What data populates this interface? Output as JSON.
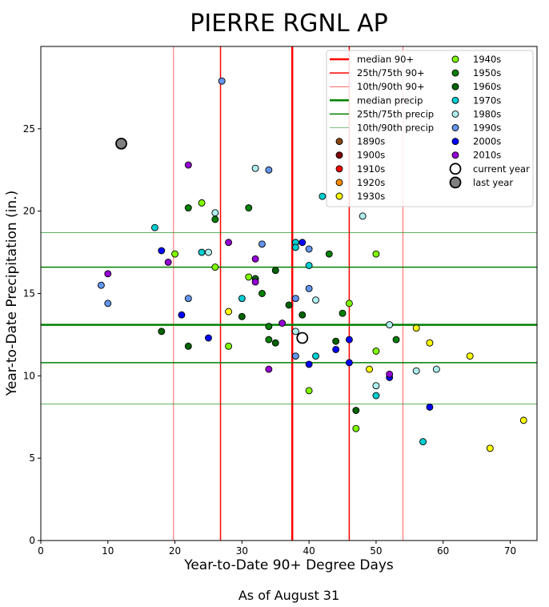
{
  "chart_data": {
    "type": "scatter",
    "title": "PIERRE RGNL AP",
    "xlabel": "Year-to-Date 90+ Degree Days",
    "ylabel": "Year-to-Date Precipitation (in.)",
    "footer": "As of August 31",
    "xlim": [
      0,
      74
    ],
    "ylim": [
      0,
      30
    ],
    "xticks": [
      0,
      10,
      20,
      30,
      40,
      50,
      60,
      70
    ],
    "yticks": [
      0,
      5,
      10,
      15,
      20,
      25
    ],
    "grid": false,
    "legend_position": "top-right",
    "reference_lines": {
      "median_90": 37.5,
      "p25_90": 26.8,
      "p75_90": 46.0,
      "p10_90": 19.8,
      "p90_90": 54.0,
      "median_precip": 13.1,
      "p25_precip": 10.8,
      "p75_precip": 16.6,
      "p10_precip": 8.3,
      "p90_precip": 18.7
    },
    "line_legend": [
      {
        "label": "median 90+",
        "color": "#ff0000",
        "width": 2.5
      },
      {
        "label": "25th/75th 90+",
        "color": "#ff0000",
        "width": 1.5
      },
      {
        "label": "10th/90th 90+",
        "color": "#ff0000",
        "width": 0.6
      },
      {
        "label": "median precip",
        "color": "#008000",
        "width": 2.5
      },
      {
        "label": "25th/75th precip",
        "color": "#008000",
        "width": 1.5
      },
      {
        "label": "10th/90th precip",
        "color": "#008000",
        "width": 0.6
      }
    ],
    "decade_legend": [
      {
        "label": "1890s",
        "color": "#8b4513"
      },
      {
        "label": "1900s",
        "color": "#800000"
      },
      {
        "label": "1910s",
        "color": "#ff0000"
      },
      {
        "label": "1920s",
        "color": "#ff8c00"
      },
      {
        "label": "1930s",
        "color": "#ffff00"
      },
      {
        "label": "1940s",
        "color": "#7fff00"
      },
      {
        "label": "1950s",
        "color": "#008000"
      },
      {
        "label": "1960s",
        "color": "#006400"
      },
      {
        "label": "1970s",
        "color": "#00ced1"
      },
      {
        "label": "1980s",
        "color": "#afeeee"
      },
      {
        "label": "1990s",
        "color": "#6495ed"
      },
      {
        "label": "2000s",
        "color": "#0000ff"
      },
      {
        "label": "2010s",
        "color": "#9400d3"
      }
    ],
    "special_legend": [
      {
        "label": "current year",
        "color": "#ffffff"
      },
      {
        "label": "last year",
        "color": "#808080"
      }
    ],
    "current_year": {
      "x": 39,
      "y": 12.3
    },
    "last_year": {
      "x": 12,
      "y": 24.1
    },
    "series": [
      {
        "name": "1930s",
        "color": "#ffff00",
        "points": [
          [
            28,
            13.9
          ],
          [
            49,
            10.4
          ],
          [
            56,
            12.9
          ],
          [
            58,
            12.0
          ],
          [
            64,
            11.2
          ],
          [
            67,
            5.6
          ],
          [
            72,
            7.3
          ]
        ]
      },
      {
        "name": "1940s",
        "color": "#7fff00",
        "points": [
          [
            20,
            17.4
          ],
          [
            24,
            20.5
          ],
          [
            26,
            16.6
          ],
          [
            28,
            11.8
          ],
          [
            31,
            16.0
          ],
          [
            40,
            9.1
          ],
          [
            46,
            14.4
          ],
          [
            47,
            6.8
          ],
          [
            50,
            17.4
          ],
          [
            50,
            11.5
          ]
        ]
      },
      {
        "name": "1950s",
        "color": "#008000",
        "points": [
          [
            22,
            20.2
          ],
          [
            26,
            19.5
          ],
          [
            31,
            20.2
          ],
          [
            33,
            15.0
          ],
          [
            34,
            13.0
          ],
          [
            34,
            12.2
          ],
          [
            43,
            17.4
          ],
          [
            45,
            13.8
          ],
          [
            53,
            12.2
          ]
        ]
      },
      {
        "name": "1960s",
        "color": "#006400",
        "points": [
          [
            18,
            12.7
          ],
          [
            22,
            11.8
          ],
          [
            30,
            13.6
          ],
          [
            32,
            15.9
          ],
          [
            35,
            16.4
          ],
          [
            35,
            12.0
          ],
          [
            37,
            14.3
          ],
          [
            39,
            13.7
          ],
          [
            44,
            12.1
          ],
          [
            47,
            7.9
          ]
        ]
      },
      {
        "name": "1970s",
        "color": "#00ced1",
        "points": [
          [
            17,
            19.0
          ],
          [
            24,
            17.5
          ],
          [
            30,
            14.7
          ],
          [
            38,
            18.1
          ],
          [
            38,
            17.8
          ],
          [
            40,
            16.7
          ],
          [
            41,
            11.2
          ],
          [
            42,
            20.9
          ],
          [
            50,
            8.8
          ],
          [
            57,
            6.0
          ]
        ]
      },
      {
        "name": "1980s",
        "color": "#afeeee",
        "points": [
          [
            25,
            17.5
          ],
          [
            26,
            19.9
          ],
          [
            32,
            22.6
          ],
          [
            38,
            12.7
          ],
          [
            41,
            14.6
          ],
          [
            48,
            19.7
          ],
          [
            50,
            9.4
          ],
          [
            52,
            13.1
          ],
          [
            56,
            10.3
          ],
          [
            59,
            10.4
          ]
        ]
      },
      {
        "name": "1990s",
        "color": "#6495ed",
        "points": [
          [
            9,
            15.5
          ],
          [
            10,
            14.4
          ],
          [
            22,
            14.7
          ],
          [
            27,
            27.9
          ],
          [
            33,
            18.0
          ],
          [
            34,
            22.5
          ],
          [
            38,
            14.7
          ],
          [
            38,
            11.2
          ],
          [
            40,
            17.7
          ],
          [
            40,
            15.3
          ]
        ]
      },
      {
        "name": "2000s",
        "color": "#0000ff",
        "points": [
          [
            18,
            17.6
          ],
          [
            21,
            13.7
          ],
          [
            25,
            12.3
          ],
          [
            39,
            18.1
          ],
          [
            40,
            10.7
          ],
          [
            44,
            11.6
          ],
          [
            46,
            12.2
          ],
          [
            46,
            10.8
          ],
          [
            52,
            9.9
          ],
          [
            58,
            8.1
          ]
        ]
      },
      {
        "name": "2010s",
        "color": "#9400d3",
        "points": [
          [
            10,
            16.2
          ],
          [
            19,
            16.9
          ],
          [
            22,
            22.8
          ],
          [
            28,
            18.1
          ],
          [
            32,
            17.1
          ],
          [
            32,
            15.7
          ],
          [
            34,
            10.4
          ],
          [
            36,
            13.2
          ],
          [
            52,
            10.1
          ]
        ]
      }
    ]
  }
}
